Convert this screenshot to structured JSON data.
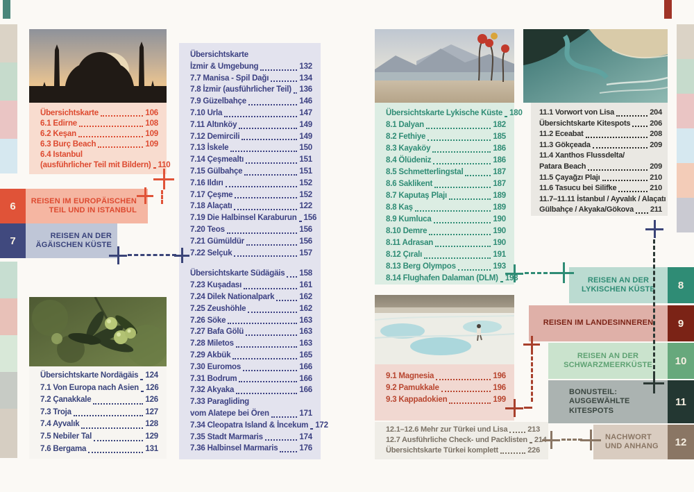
{
  "accents": {
    "orange": "#E05338",
    "navy": "#3A4478",
    "teal": "#2F8C75",
    "dark": "#2B3834",
    "red": "#A8402C",
    "brown": "#8A7664"
  },
  "corner_marks": {
    "left": "#49867A",
    "right": "#A03427"
  },
  "edge_strips": {
    "left_top": [
      "#DBD3C6",
      "#C6DBCC",
      "#EAC5C4",
      "#D6E8F0"
    ],
    "left_bottom": [
      "#C7DED1",
      "#E8C1B8",
      "#D8E8D8",
      "#C7CBC5",
      "#D6CEC2"
    ],
    "right_top": [
      "#DBD3C6",
      "#C6DBCC",
      "#EAC5C4",
      "#D6E8F0",
      "#F3CCB8",
      "#CACAD2"
    ]
  },
  "bands": {
    "band6": {
      "num": "6",
      "label": "REISEN IM EUROPÄISCHEN\nTEIL UND IN ISTANBUL",
      "square": "#E05338",
      "bg": "#F5B6A2",
      "fg": "#DD4A30"
    },
    "band7": {
      "num": "7",
      "label": "REISEN AN DER\nÄGÄISCHEN KÜSTE",
      "square": "#40497E",
      "bg": "#BFC6D7",
      "fg": "#39437B"
    },
    "band8": {
      "num": "8",
      "label": "REISEN AN DER\nLYKISCHEN KÜSTE",
      "square": "#2F8C75",
      "bg": "#BBDBD1",
      "fg": "#2F8C75"
    },
    "band9": {
      "num": "9",
      "label": "REISEN IM LANDESINNEREN",
      "square": "#7B2316",
      "bg": "#DFB0A8",
      "fg": "#7B2316"
    },
    "band10": {
      "num": "10",
      "label": "REISEN AN DER\nSCHWARZMEERKÜSTE",
      "square": "#67A87C",
      "bg": "#CAE3CD",
      "fg": "#5FA273"
    },
    "band11": {
      "num": "11",
      "label": "BONUSTEIL:\nAUSGEWÄHLTE\nKITESPOTS",
      "square": "#233732",
      "bg": "#ABB3B1",
      "fg": "#39453F"
    },
    "band12": {
      "num": "12",
      "label": "NACHWORT\nUND ANHANG",
      "square": "#8A7664",
      "bg": "#D9CCC0",
      "fg": "#8A7664"
    }
  },
  "lists": {
    "chapter6": {
      "color": "#DD4A30",
      "bg": "#F8DCCF",
      "items": [
        {
          "label": "Übersichtskarte",
          "page": "106"
        },
        {
          "label": "6.1 Edirne",
          "page": "108"
        },
        {
          "label": "6.2 Keşan",
          "page": "109"
        },
        {
          "label": "6.3 Burç Beach",
          "page": "109"
        },
        {
          "pre": "6.4 Istanbul",
          "label": "(ausführlicher Teil mit Bildern)",
          "page": "110"
        }
      ]
    },
    "chapter7_north": {
      "color": "#39437B",
      "bg": "#F7F5F1",
      "items": [
        {
          "label": "Übersichtskarte Nordägäis",
          "page": "124"
        },
        {
          "label": "7.1 Von Europa nach Asien",
          "page": "126"
        },
        {
          "label": "7.2 Çanakkale",
          "page": "126"
        },
        {
          "label": "7.3 Troja",
          "page": "127"
        },
        {
          "label": "7.4 Ayvalık",
          "page": "128"
        },
        {
          "label": "7.5 Nebiler Tal",
          "page": "129"
        },
        {
          "label": "7.6 Bergama",
          "page": "131"
        }
      ]
    },
    "chapter7_column": {
      "color": "#3C4182",
      "bg": "#E3E3EE",
      "items": [
        {
          "pre": "Übersichtskarte",
          "label": "İzmir & Umgebung",
          "page": "132"
        },
        {
          "label": "7.7 Manisa - Spil Dağı",
          "page": "134"
        },
        {
          "label": "7.8 İzmir (ausführlicher Teil)",
          "page": "136"
        },
        {
          "label": "7.9 Güzelbahçe",
          "page": "146"
        },
        {
          "label": "7.10 Urla",
          "page": "147"
        },
        {
          "label": "7.11 Altınköy",
          "page": "149"
        },
        {
          "label": "7.12 Demircili",
          "page": "149"
        },
        {
          "label": "7.13 İskele",
          "page": "150"
        },
        {
          "label": "7.14 Çeşmealtı",
          "page": "151"
        },
        {
          "label": "7.15 Gülbahçe",
          "page": "151"
        },
        {
          "label": "7.16 Ildırı",
          "page": "152"
        },
        {
          "label": "7.17 Çeşme",
          "page": "152"
        },
        {
          "label": "7.18 Alaçatı",
          "page": "122"
        },
        {
          "label": "7.19 Die Halbinsel Karaburun",
          "page": "156"
        },
        {
          "label": "7.20 Teos",
          "page": "156"
        },
        {
          "label": "7.21 Gümüldür",
          "page": "156"
        },
        {
          "label": "7.22 Selçuk",
          "page": "157"
        },
        {
          "gap": true,
          "label": "Übersichtskarte Südägäis",
          "page": "158"
        },
        {
          "label": "7.23 Kuşadası",
          "page": "161"
        },
        {
          "label": "7.24 Dilek Nationalpark",
          "page": "162"
        },
        {
          "label": "7.25 Zeushöhle",
          "page": "162"
        },
        {
          "label": "7.26 Söke",
          "page": "163"
        },
        {
          "label": "7.27 Bafa Gölü",
          "page": "163"
        },
        {
          "label": "7.28 Miletos",
          "page": "163"
        },
        {
          "label": "7.29 Akbük",
          "page": "165"
        },
        {
          "label": "7.30 Euromos",
          "page": "166"
        },
        {
          "label": "7.31 Bodrum",
          "page": "166"
        },
        {
          "label": "7.32 Akyaka",
          "page": "166"
        },
        {
          "pre": "7.33 Paragliding",
          "label": "vom Alatepe bei Ören",
          "page": "171"
        },
        {
          "label": "7.34 Cleopatra Island & İncekum",
          "page": "172"
        },
        {
          "label": "7.35 Stadt Marmaris",
          "page": "174"
        },
        {
          "label": "7.36 Halbinsel Marmaris",
          "page": "176"
        }
      ]
    },
    "chapter8": {
      "color": "#2F8C75",
      "bg": "#DCEDE3",
      "items": [
        {
          "label": "Übersichtskarte Lykische Küste",
          "page": "180"
        },
        {
          "label": "8.1 Dalyan",
          "page": "182"
        },
        {
          "label": "8.2 Fethiye",
          "page": "185"
        },
        {
          "label": "8.3 Kayaköy",
          "page": "186"
        },
        {
          "label": "8.4 Ölüdeniz",
          "page": "186"
        },
        {
          "label": "8.5 Schmetterlingstal",
          "page": "187"
        },
        {
          "label": "8.6 Saklikent",
          "page": "187"
        },
        {
          "label": "8.7 Kaputaş Plajı",
          "page": "189"
        },
        {
          "label": "8.8 Kaş",
          "page": "189"
        },
        {
          "label": "8.9 Kumluca",
          "page": "190"
        },
        {
          "label": "8.10 Demre",
          "page": "190"
        },
        {
          "label": "8.11 Adrasan",
          "page": "190"
        },
        {
          "label": "8.12 Çıralı",
          "page": "191"
        },
        {
          "label": "8.13 Berg Olympos",
          "page": "193"
        },
        {
          "label": "8.14 Flughafen Dalaman (DLM)",
          "page": "193"
        }
      ]
    },
    "chapter11": {
      "color": "#2E2E2C",
      "bg": "#EAE8E3",
      "items": [
        {
          "label": "11.1 Vorwort von Lisa",
          "page": "204"
        },
        {
          "label": "Übersichtskarte Kitespots",
          "page": "206"
        },
        {
          "label": "11.2 Eceabat",
          "page": "208"
        },
        {
          "label": "11.3 Gökçeada",
          "page": "209"
        },
        {
          "pre": "11.4 Xanthos Flussdelta/",
          "label": "Patara Beach",
          "page": "209"
        },
        {
          "label": "11.5 Çayağzı Plajı",
          "page": "210"
        },
        {
          "label": "11.6 Tasucu bei Silifke",
          "page": "210"
        },
        {
          "pre": "11.7–11.11 İstanbul / Ayvalık / Alaçatı",
          "label": "Gülbahçe / Akyaka/Gökova",
          "page": "211"
        }
      ]
    },
    "chapter9": {
      "color": "#B8452F",
      "bg": "#F1D8D1",
      "items": [
        {
          "label": "9.1 Magnesia",
          "page": "196"
        },
        {
          "label": "9.2 Pamukkale",
          "page": "196"
        },
        {
          "label": "9.3 Kappadokien",
          "page": "199"
        }
      ]
    },
    "chapter12": {
      "color": "#7B7266",
      "bg": "#EFEDE7",
      "items": [
        {
          "label": "12.1–12.6 Mehr zur Türkei und Lisa",
          "page": "213"
        },
        {
          "label": "12.7 Ausführliche Check- und Packlisten",
          "page": "214"
        },
        {
          "label": "Übersichtskarte Türkei komplett",
          "page": "226"
        }
      ]
    }
  },
  "photos": {
    "photo1": "istanbul-mosque-sunset",
    "photo2": "olive-branch",
    "photo3": "lycian-beach-sculptures",
    "photo4": "river-delta-aerial",
    "photo5": "pamukkale-terraces"
  }
}
